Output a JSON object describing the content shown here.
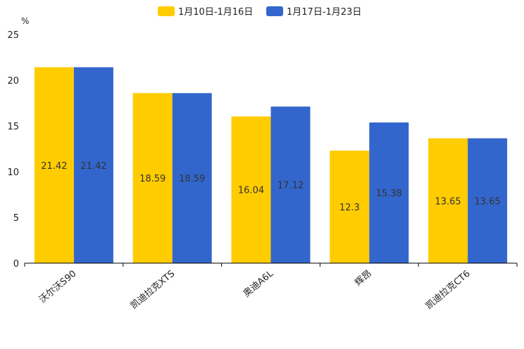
{
  "chart_data": {
    "type": "bar",
    "categories": [
      "沃尔沃S90",
      "凯迪拉克XTS",
      "奥迪A6L",
      "辉昂",
      "凯迪拉克CT6"
    ],
    "series": [
      {
        "name": "1月10日-1月16日",
        "color": "#FFCC00",
        "values": [
          21.42,
          18.59,
          16.04,
          12.3,
          13.65
        ],
        "labels": [
          "21.42",
          "18.59",
          "16.04",
          "12.3",
          "13.65"
        ]
      },
      {
        "name": "1月17日-1月23日",
        "color": "#3366CC",
        "values": [
          21.42,
          18.59,
          17.12,
          15.38,
          13.65
        ],
        "labels": [
          "21.42",
          "18.59",
          "17.12",
          "15.38",
          "13.65"
        ]
      }
    ],
    "yunit": "%",
    "ylim": [
      0,
      25
    ],
    "yticks": [
      "0",
      "5",
      "10",
      "15",
      "20",
      "25"
    ],
    "legend_position": "top-center",
    "grid": false
  }
}
